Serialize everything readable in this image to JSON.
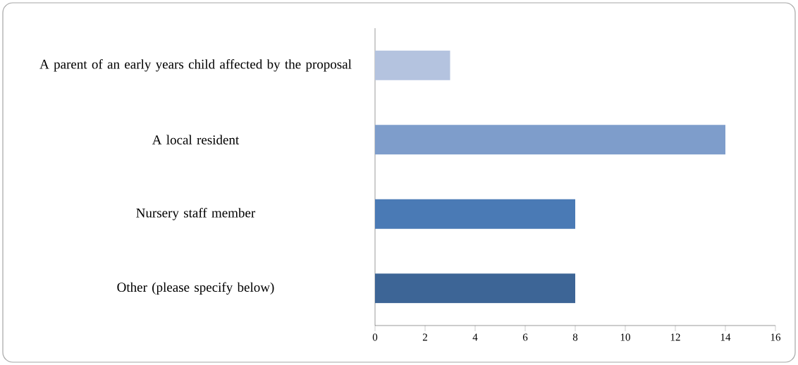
{
  "chart_data": {
    "type": "bar",
    "orientation": "horizontal",
    "categories": [
      "A parent of an early years child affected by the proposal",
      "A local resident",
      "Nursery staff member",
      "Other (please specify below)"
    ],
    "values": [
      3,
      14,
      8,
      8
    ],
    "colors": [
      "#b4c3df",
      "#7e9dcb",
      "#4a7ab5",
      "#3d6596"
    ],
    "xlim": [
      0,
      16
    ],
    "xticks": [
      0,
      2,
      4,
      6,
      8,
      10,
      12,
      14,
      16
    ]
  }
}
